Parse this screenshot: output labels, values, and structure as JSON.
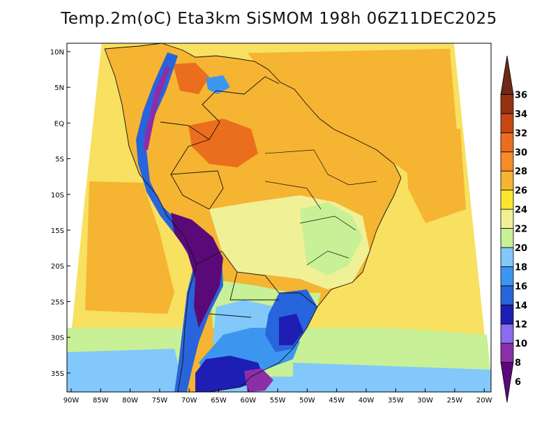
{
  "title": "Temp.2m(oC) Eta3km SiSMOM 198h 06Z11DEC2025",
  "map": {
    "lat_labels": [
      "10N",
      "5N",
      "EQ",
      "5S",
      "10S",
      "15S",
      "20S",
      "25S",
      "30S",
      "35S"
    ],
    "lon_labels": [
      "90W",
      "85W",
      "80W",
      "75W",
      "70W",
      "65W",
      "60W",
      "55W",
      "50W",
      "45W",
      "40W",
      "35W",
      "30W",
      "25W",
      "20W"
    ]
  },
  "colorbar": {
    "labels": [
      "6",
      "8",
      "10",
      "12",
      "14",
      "16",
      "18",
      "20",
      "22",
      "24",
      "26",
      "28",
      "30",
      "32",
      "34",
      "36"
    ],
    "colors": [
      "#5a0a78",
      "#8c2ea8",
      "#8a6cf0",
      "#1e1eb4",
      "#2864dc",
      "#3c96f0",
      "#82c8fa",
      "#c8f096",
      "#f0f096",
      "#fae632",
      "#f5b432",
      "#f58c28",
      "#eb6e1e",
      "#c84614",
      "#963214",
      "#6e2814"
    ]
  }
}
